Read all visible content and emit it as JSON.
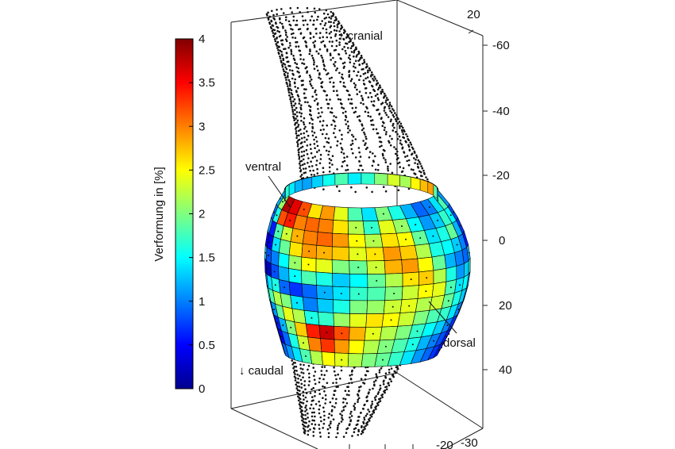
{
  "chart_data": {
    "type": "heatmap",
    "colorbar": {
      "label": "Verformung in [%]",
      "min": 0,
      "max": 4,
      "ticks": [
        "4",
        "3.5",
        "3",
        "2.5",
        "2",
        "1.5",
        "1",
        "0.5",
        "0"
      ],
      "colormap": "jet"
    },
    "z_axis": {
      "ticks": [
        "-60",
        "-40",
        "-20",
        "0",
        "20",
        "40"
      ]
    },
    "top_tick": "20",
    "bottom_ticks": [
      "-20",
      "-30"
    ],
    "annotations": {
      "cranial": "↑ cranial",
      "caudal": "↓ caudal",
      "ventral": "ventral",
      "dorsal": "dorsal"
    },
    "strain_grid": [
      [
        1.2,
        2.1,
        3.8,
        3.6,
        3.2,
        2.6,
        2.9,
        2.4,
        1.8,
        1.4,
        2.0,
        1.6,
        1.2,
        0.9,
        1.0,
        1.4,
        1.8,
        1.1
      ],
      [
        0.9,
        1.6,
        3.2,
        3.4,
        3.0,
        3.1,
        3.0,
        2.6,
        2.2,
        1.7,
        2.4,
        2.1,
        1.5,
        1.1,
        1.3,
        1.7,
        1.5,
        0.8
      ],
      [
        1.1,
        0.6,
        1.8,
        2.3,
        2.8,
        3.0,
        3.1,
        2.9,
        2.5,
        2.2,
        2.6,
        2.5,
        1.9,
        1.4,
        1.6,
        1.9,
        1.2,
        0.7
      ],
      [
        0.5,
        0.4,
        1.4,
        1.9,
        2.6,
        2.9,
        2.8,
        2.7,
        2.4,
        2.6,
        2.9,
        2.7,
        2.2,
        1.6,
        1.5,
        1.3,
        1.0,
        0.6
      ],
      [
        1.3,
        0.8,
        1.0,
        1.5,
        2.1,
        2.5,
        2.4,
        2.0,
        1.9,
        2.3,
        2.8,
        2.9,
        2.5,
        1.9,
        1.2,
        1.0,
        0.9,
        1.2
      ],
      [
        0.4,
        0.3,
        0.8,
        1.2,
        1.5,
        1.8,
        1.6,
        1.3,
        1.5,
        1.9,
        2.2,
        2.6,
        2.7,
        2.2,
        1.6,
        1.1,
        1.3,
        1.6
      ],
      [
        1.0,
        1.4,
        1.6,
        0.9,
        0.7,
        0.9,
        1.2,
        1.4,
        1.7,
        1.8,
        2.0,
        2.3,
        2.5,
        2.4,
        1.8,
        1.4,
        1.5,
        1.1
      ],
      [
        1.5,
        1.8,
        2.2,
        2.0,
        1.4,
        1.0,
        1.3,
        1.6,
        2.0,
        2.1,
        2.3,
        2.4,
        2.2,
        2.3,
        1.9,
        1.6,
        1.3,
        0.9
      ],
      [
        0.7,
        1.1,
        1.9,
        2.4,
        2.2,
        1.6,
        1.7,
        2.1,
        2.4,
        2.6,
        2.5,
        2.3,
        2.0,
        1.8,
        1.7,
        1.4,
        1.0,
        0.8
      ],
      [
        0.3,
        0.6,
        1.2,
        2.0,
        2.7,
        3.4,
        3.7,
        3.2,
        2.8,
        2.4,
        2.2,
        2.0,
        1.7,
        1.5,
        1.3,
        1.0,
        0.7,
        0.5
      ],
      [
        0.2,
        0.5,
        0.9,
        1.6,
        2.3,
        3.0,
        3.3,
        2.9,
        2.5,
        2.2,
        2.0,
        1.8,
        1.6,
        1.2,
        1.0,
        0.8,
        0.6,
        0.4
      ],
      [
        0.6,
        0.9,
        1.1,
        1.4,
        1.8,
        2.2,
        2.5,
        2.4,
        2.2,
        2.0,
        1.9,
        1.7,
        1.4,
        1.1,
        0.9,
        0.7,
        0.6,
        0.8
      ]
    ]
  }
}
